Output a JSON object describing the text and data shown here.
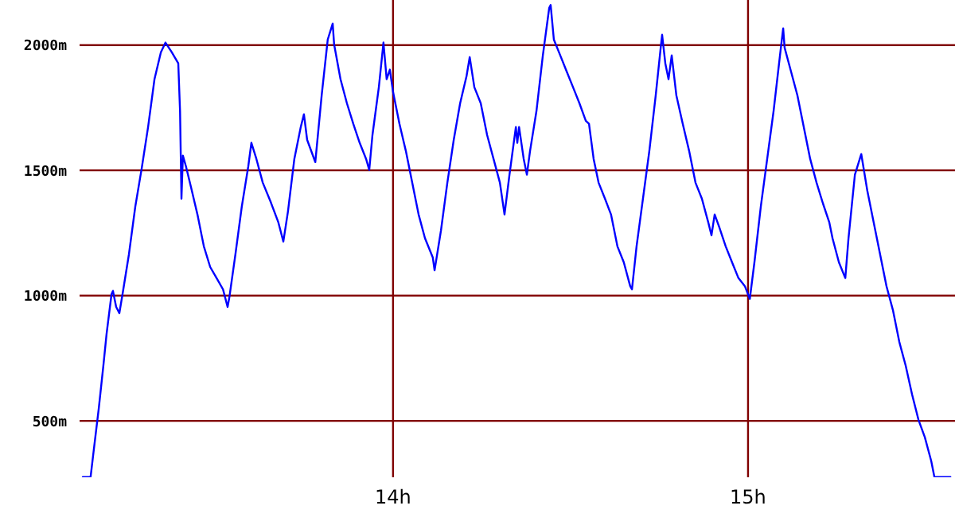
{
  "chart_data": {
    "type": "line",
    "xlim": [
      13.117,
      15.583
    ],
    "ylim": [
      275,
      2180
    ],
    "xticks": [
      {
        "value": 14,
        "label": "14h"
      },
      {
        "value": 15,
        "label": "15h"
      }
    ],
    "yticks": [
      {
        "value": 500,
        "label": "500m"
      },
      {
        "value": 1000,
        "label": "1000m"
      },
      {
        "value": 1500,
        "label": "1500m"
      },
      {
        "value": 2000,
        "label": "2000m"
      }
    ],
    "grid": true,
    "marker": "none",
    "series": [
      {
        "color": "#0000ff",
        "x": [
          13.126,
          13.148,
          13.157,
          13.171,
          13.184,
          13.193,
          13.207,
          13.211,
          13.22,
          13.229,
          13.238,
          13.256,
          13.274,
          13.292,
          13.31,
          13.328,
          13.346,
          13.359,
          13.377,
          13.395,
          13.4,
          13.404,
          13.408,
          13.417,
          13.431,
          13.449,
          13.467,
          13.485,
          13.503,
          13.521,
          13.534,
          13.539,
          13.556,
          13.574,
          13.592,
          13.601,
          13.615,
          13.633,
          13.655,
          13.677,
          13.691,
          13.704,
          13.722,
          13.74,
          13.749,
          13.758,
          13.781,
          13.799,
          13.816,
          13.83,
          13.834,
          13.852,
          13.87,
          13.888,
          13.906,
          13.924,
          13.933,
          13.942,
          13.96,
          13.973,
          13.982,
          13.991,
          14.0,
          14.018,
          14.036,
          14.054,
          14.072,
          14.09,
          14.112,
          14.117,
          14.135,
          14.153,
          14.171,
          14.189,
          14.207,
          14.216,
          14.229,
          14.247,
          14.265,
          14.283,
          14.301,
          14.314,
          14.328,
          14.346,
          14.35,
          14.355,
          14.368,
          14.377,
          14.386,
          14.404,
          14.422,
          14.44,
          14.444,
          14.453,
          14.471,
          14.489,
          14.507,
          14.525,
          14.543,
          14.552,
          14.565,
          14.579,
          14.597,
          14.614,
          14.632,
          14.65,
          14.668,
          14.673,
          14.686,
          14.704,
          14.722,
          14.74,
          14.754,
          14.758,
          14.767,
          14.776,
          14.785,
          14.798,
          14.816,
          14.834,
          14.852,
          14.87,
          14.888,
          14.897,
          14.906,
          14.919,
          14.937,
          14.955,
          14.973,
          14.991,
          15.005,
          15.018,
          15.036,
          15.054,
          15.072,
          15.09,
          15.099,
          15.103,
          15.121,
          15.139,
          15.157,
          15.175,
          15.193,
          15.211,
          15.229,
          15.238,
          15.256,
          15.274,
          15.283,
          15.301,
          15.319,
          15.336,
          15.354,
          15.372,
          15.39,
          15.408,
          15.426,
          15.444,
          15.462,
          15.48,
          15.498,
          15.516,
          15.525,
          15.57
        ],
        "values": [
          276,
          276,
          384,
          549,
          721,
          847,
          1006,
          1019,
          955,
          930,
          1006,
          1165,
          1356,
          1508,
          1673,
          1864,
          1971,
          2010,
          1971,
          1927,
          1737,
          1387,
          1559,
          1514,
          1432,
          1324,
          1197,
          1114,
          1070,
          1025,
          955,
          994,
          1165,
          1356,
          1514,
          1610,
          1546,
          1451,
          1375,
          1292,
          1216,
          1336,
          1546,
          1673,
          1724,
          1622,
          1533,
          1800,
          2022,
          2086,
          2003,
          1864,
          1768,
          1686,
          1610,
          1546,
          1502,
          1641,
          1832,
          2010,
          1864,
          1902,
          1813,
          1686,
          1578,
          1451,
          1324,
          1229,
          1152,
          1101,
          1260,
          1451,
          1622,
          1768,
          1876,
          1952,
          1832,
          1768,
          1641,
          1546,
          1451,
          1324,
          1483,
          1673,
          1610,
          1673,
          1546,
          1483,
          1578,
          1737,
          1959,
          2149,
          2160,
          2022,
          1959,
          1895,
          1832,
          1768,
          1698,
          1686,
          1546,
          1451,
          1387,
          1324,
          1197,
          1133,
          1038,
          1025,
          1197,
          1387,
          1578,
          1800,
          1990,
          2041,
          1927,
          1864,
          1959,
          1800,
          1686,
          1578,
          1451,
          1387,
          1292,
          1241,
          1324,
          1273,
          1197,
          1133,
          1070,
          1038,
          987,
          1133,
          1356,
          1546,
          1737,
          1959,
          2067,
          1990,
          1895,
          1800,
          1673,
          1546,
          1451,
          1368,
          1292,
          1229,
          1133,
          1070,
          1229,
          1483,
          1565,
          1419,
          1292,
          1165,
          1038,
          943,
          816,
          721,
          606,
          505,
          435,
          340,
          276,
          276
        ]
      }
    ]
  }
}
